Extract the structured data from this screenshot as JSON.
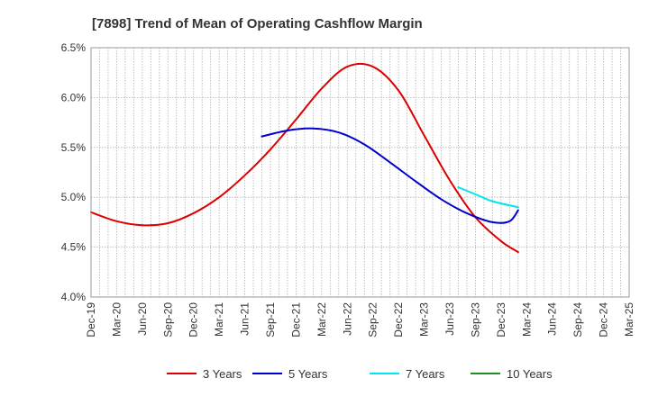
{
  "chart_data": {
    "type": "line",
    "title": "[7898]  Trend of Mean of Operating Cashflow Margin",
    "xlabel": "",
    "ylabel": "",
    "ylim": [
      4.0,
      6.5
    ],
    "y_ticks": [
      4.0,
      4.5,
      5.0,
      5.5,
      6.0,
      6.5
    ],
    "y_tick_labels": [
      "4.0%",
      "4.5%",
      "5.0%",
      "5.5%",
      "6.0%",
      "6.5%"
    ],
    "x_tick_labels": [
      "Dec-19",
      "Mar-20",
      "Jun-20",
      "Sep-20",
      "Dec-20",
      "Mar-21",
      "Jun-21",
      "Sep-21",
      "Dec-21",
      "Mar-22",
      "Jun-22",
      "Sep-22",
      "Dec-22",
      "Mar-23",
      "Jun-23",
      "Sep-23",
      "Dec-23",
      "Mar-24",
      "Jun-24",
      "Sep-24",
      "Dec-24",
      "Mar-25"
    ],
    "x_months_total": 63,
    "grid": true,
    "legend_position": "bottom",
    "series": [
      {
        "name": "3 Years",
        "color": "#dd0000",
        "points": [
          [
            0,
            4.85
          ],
          [
            3,
            4.76
          ],
          [
            6,
            4.72
          ],
          [
            9,
            4.74
          ],
          [
            12,
            4.84
          ],
          [
            15,
            5.0
          ],
          [
            18,
            5.22
          ],
          [
            21,
            5.48
          ],
          [
            24,
            5.78
          ],
          [
            27,
            6.09
          ],
          [
            30,
            6.31
          ],
          [
            33,
            6.31
          ],
          [
            36,
            6.07
          ],
          [
            39,
            5.62
          ],
          [
            42,
            5.17
          ],
          [
            45,
            4.8
          ],
          [
            48,
            4.56
          ],
          [
            50,
            4.45
          ]
        ]
      },
      {
        "name": "5 Years",
        "color": "#0000cc",
        "points": [
          [
            20,
            5.61
          ],
          [
            23,
            5.67
          ],
          [
            26,
            5.69
          ],
          [
            29,
            5.65
          ],
          [
            32,
            5.53
          ],
          [
            35,
            5.35
          ],
          [
            38,
            5.16
          ],
          [
            41,
            4.98
          ],
          [
            44,
            4.84
          ],
          [
            47,
            4.75
          ],
          [
            49,
            4.76
          ],
          [
            50,
            4.87
          ]
        ]
      },
      {
        "name": "7 Years",
        "color": "#00e5ee",
        "points": [
          [
            43,
            5.1
          ],
          [
            45,
            5.03
          ],
          [
            47,
            4.96
          ],
          [
            50,
            4.9
          ]
        ]
      },
      {
        "name": "10 Years",
        "color": "#228b22",
        "points": []
      }
    ]
  }
}
